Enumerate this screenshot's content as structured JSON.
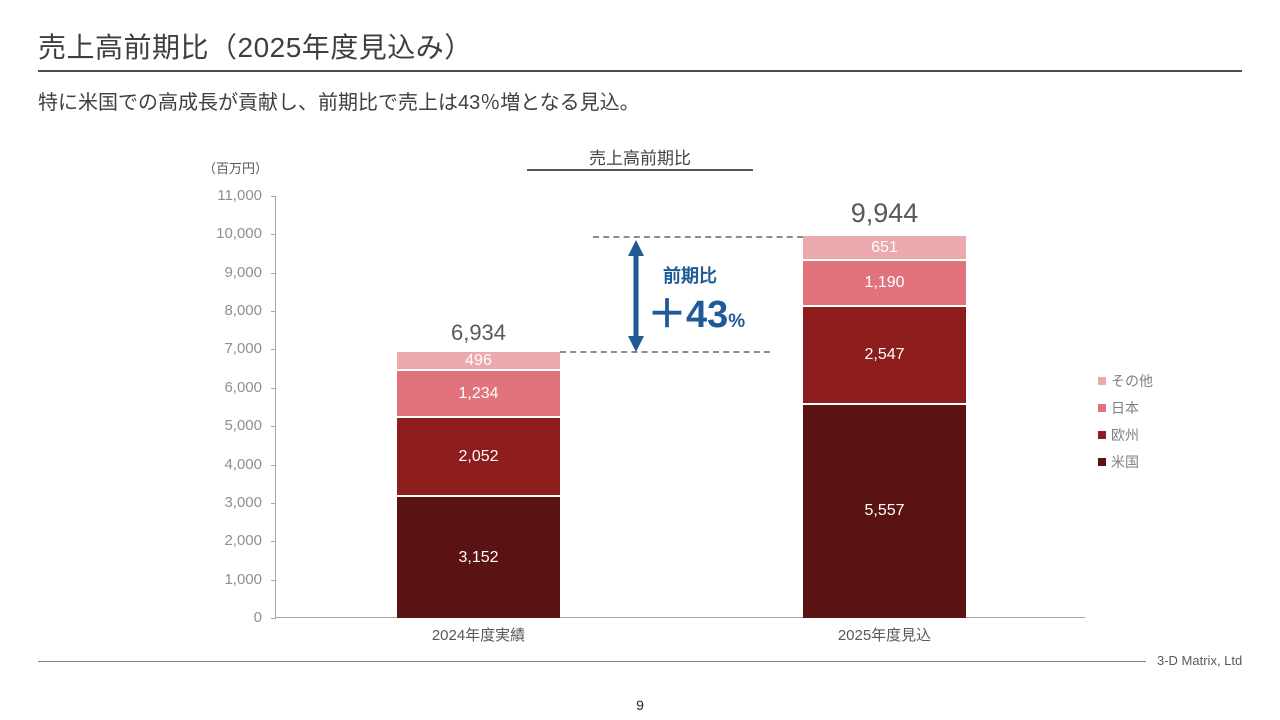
{
  "page": {
    "title": "売上高前期比（2025年度見込み）",
    "subtitle": "特に米国での高成長が貢献し、前期比で売上は43％増となる見込。",
    "footer_company": "3-D Matrix, Ltd",
    "page_number": "9"
  },
  "chart_data": {
    "type": "bar",
    "stacked": true,
    "title": "売上高前期比",
    "unit_label": "（百万円）",
    "categories": [
      "2024年度実績",
      "2025年度見込"
    ],
    "series": [
      {
        "name": "米国",
        "values": [
          3152,
          5557
        ],
        "color": "#5A1312"
      },
      {
        "name": "欧州",
        "values": [
          2052,
          2547
        ],
        "color": "#8E1D1D"
      },
      {
        "name": "日本",
        "values": [
          1234,
          1190
        ],
        "color": "#E0737C"
      },
      {
        "name": "その他",
        "values": [
          496,
          651
        ],
        "color": "#EBA8AD"
      }
    ],
    "totals": [
      6934,
      9944
    ],
    "ylim": [
      0,
      11000
    ],
    "ytick_step": 1000,
    "grid": false,
    "legend_position": "right",
    "legend_order": [
      "その他",
      "日本",
      "欧州",
      "米国"
    ],
    "annotation": {
      "label": "前期比",
      "value": "＋43",
      "suffix": "%"
    },
    "accent_color": "#1d5a96"
  }
}
